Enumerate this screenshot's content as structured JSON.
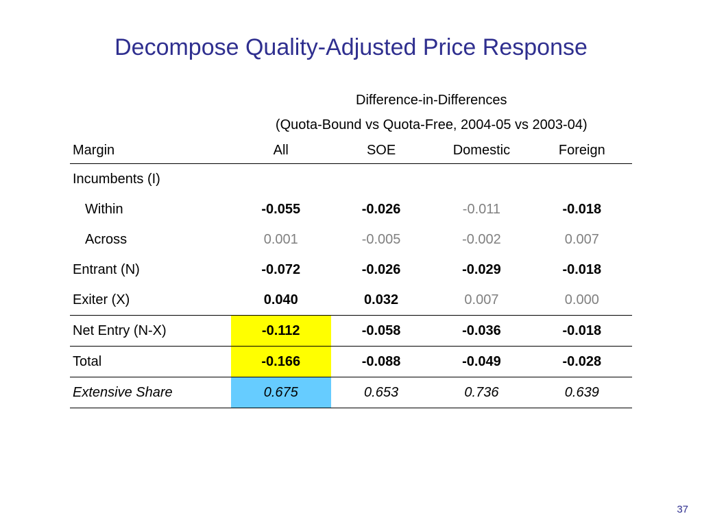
{
  "slide": {
    "title": "Decompose Quality-Adjusted Price Response",
    "page_number": "37"
  },
  "table": {
    "header_line1": "Difference-in-Differences",
    "header_line2": "(Quota-Bound vs Quota-Free, 2004-05 vs 2003-04)",
    "columns": [
      "Margin",
      "All",
      "SOE",
      "Domestic",
      "Foreign"
    ],
    "rows": [
      {
        "label": "Incumbents (I)",
        "values": [
          "",
          "",
          "",
          ""
        ]
      },
      {
        "label": "Within",
        "values": [
          "-0.055",
          "-0.026",
          "-0.011",
          "-0.018"
        ]
      },
      {
        "label": "Across",
        "values": [
          "0.001",
          "-0.005",
          "-0.002",
          "0.007"
        ]
      },
      {
        "label": "Entrant (N)",
        "values": [
          "-0.072",
          "-0.026",
          "-0.029",
          "-0.018"
        ]
      },
      {
        "label": "Exiter (X)",
        "values": [
          "0.040",
          "0.032",
          "0.007",
          "0.000"
        ]
      },
      {
        "label": "Net Entry (N-X)",
        "values": [
          "-0.112",
          "-0.058",
          "-0.036",
          "-0.018"
        ]
      },
      {
        "label": "Total",
        "values": [
          "-0.166",
          "-0.088",
          "-0.049",
          "-0.028"
        ]
      },
      {
        "label": "Extensive Share",
        "values": [
          "0.675",
          "0.653",
          "0.736",
          "0.639"
        ]
      }
    ],
    "highlight_colors": {
      "yellow": "#ffff00",
      "blue": "#66ccff",
      "title_color": "#2f2f8f",
      "insignificant_gray": "#808080"
    }
  }
}
